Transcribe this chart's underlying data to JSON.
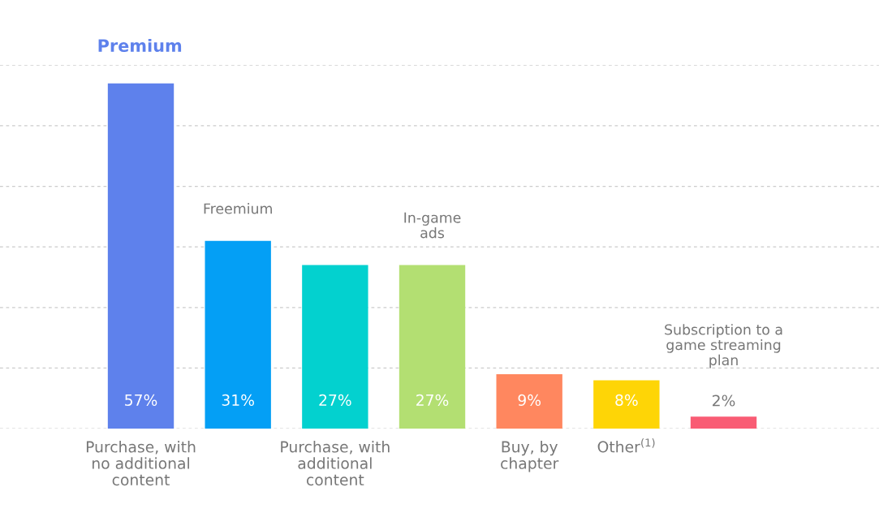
{
  "chart_data": {
    "type": "bar",
    "categories": [
      "Purchase, with\nno additional\ncontent",
      null,
      "Purchase, with\nadditional\ncontent",
      null,
      "Buy, by\nchapter",
      "Other$^{(1)}$",
      null
    ],
    "values": [
      57,
      31,
      27,
      27,
      9,
      8,
      2
    ],
    "colors": [
      "#5e81ec",
      "#049ff5",
      "#03d1cf",
      "#b3df72",
      "#ff875f",
      "#fed506",
      "#f95c74"
    ],
    "value_labels": [
      "57%",
      "31%",
      "27%",
      "27%",
      "9%",
      "8%",
      "2%"
    ],
    "annotations": [
      "Premium",
      "Freemium",
      "In-game\nads",
      "Subscription to a\ngame streaming\nplan"
    ],
    "ylim": [
      0,
      60
    ],
    "yticks": [
      {
        "value": 0,
        "label": null
      },
      {
        "value": 10,
        "label": null
      },
      {
        "value": 20,
        "label": null
      },
      {
        "value": 30,
        "label": null
      },
      {
        "value": 40,
        "label": null
      },
      {
        "value": 50,
        "label": null
      },
      {
        "value": 60,
        "label": null
      }
    ],
    "grid": "y",
    "tick_labels": "x"
  }
}
